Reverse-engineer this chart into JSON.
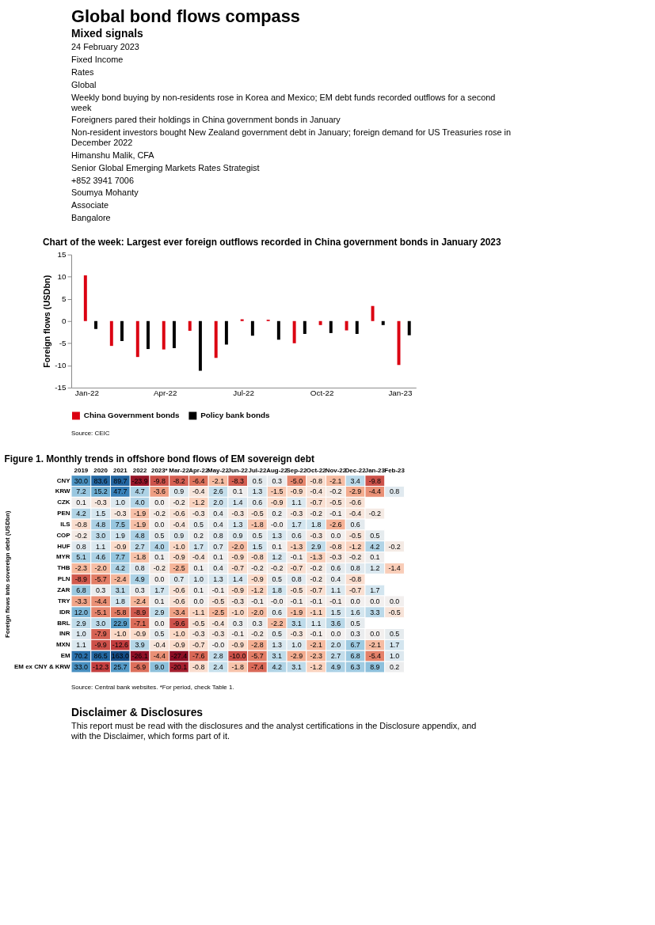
{
  "chart_data": [
    {
      "type": "other",
      "title": "Global bond flows compass",
      "subtitle": "Mixed signals",
      "annotations": [
        "24 February 2023",
        "Fixed Income",
        "Rates",
        "Global",
        "Weekly bond buying by non-residents rose in Korea and Mexico; EM debt funds recorded outflows for a second week",
        "Foreigners pared their holdings in China government bonds in January",
        "Non-resident investors bought New Zealand government debt in January; foreign demand for US Treasuries rose in December 2022",
        "Himanshu Malik, CFA",
        "Senior Global Emerging Markets Rates Strategist",
        "+852 3941 7006",
        "Soumya Mohanty",
        "Associate",
        "Bangalore"
      ]
    },
    {
      "type": "bar",
      "title": "Chart of the week: Largest ever foreign outflows recorded in China government bonds in January 2023",
      "ylabel": "Foreign flows (USDbn)",
      "categories": [
        "Jan-22",
        null,
        null,
        "Apr-22",
        null,
        null,
        "Jul-22",
        null,
        null,
        "Oct-22",
        null,
        null,
        "Jan-23"
      ],
      "series": [
        {
          "name": "China Government bonds",
          "color": "#db0011",
          "values": [
            10.3,
            -5.6,
            -8.1,
            -6.4,
            -2.2,
            -8.3,
            0.4,
            0.3,
            -5.0,
            -0.9,
            -2.1,
            3.4,
            -9.9
          ]
        },
        {
          "name": "Policy bank bonds",
          "color": "#000000",
          "values": [
            -1.8,
            -4.5,
            -6.3,
            -6.1,
            -11.2,
            -5.3,
            -3.3,
            -4.2,
            -2.9,
            -2.7,
            -2.9,
            -0.9,
            -3.2
          ]
        }
      ],
      "ylim": [
        -15,
        15
      ],
      "yticks": [
        -15,
        -10,
        -5,
        0,
        5,
        10,
        15
      ],
      "grid": false,
      "legend": "bottom",
      "annotations": [
        "Source: CEIC"
      ]
    },
    {
      "type": "heatmap",
      "title": "Figure 1. Monthly trends in offshore bond flows of EM sovereign debt",
      "ylabel": "Foreign flows into sovereign debt (USDbn)",
      "categories": [
        "2019",
        "2020",
        "2021",
        "2022",
        "2023*",
        "Mar-22",
        "Apr-22",
        "May-22",
        "Jun-22",
        "Jul-22",
        "Aug-22",
        "Sep-22",
        "Oct-22",
        "Nov-22",
        "Dec-22",
        "Jan-23",
        "Feb-23"
      ],
      "y_categories": [
        "CNY",
        "KRW",
        "CZK",
        "PEN",
        "ILS",
        "COP",
        "HUF",
        "MYR",
        "THB",
        "PLN",
        "ZAR",
        "TRY",
        "IDR",
        "BRL",
        "INR",
        "MXN",
        "EM",
        "EM ex CNY & KRW"
      ],
      "cells": [
        [
          30.0,
          83.6,
          89.7,
          -23.9,
          -9.8,
          -8.2,
          -6.4,
          -2.1,
          -8.3,
          0.5,
          0.3,
          -5.0,
          -0.8,
          -2.1,
          3.4,
          -9.8,
          null
        ],
        [
          7.2,
          15.2,
          47.7,
          4.7,
          -3.6,
          0.9,
          -0.4,
          2.6,
          0.1,
          1.3,
          -1.5,
          -0.9,
          -0.4,
          -0.2,
          -2.9,
          -4.4,
          0.8
        ],
        [
          0.1,
          -0.3,
          1.0,
          4.0,
          0.0,
          -0.2,
          -1.2,
          2.0,
          1.4,
          0.6,
          -0.9,
          1.1,
          -0.7,
          -0.5,
          -0.6,
          null,
          null
        ],
        [
          4.2,
          1.5,
          -0.3,
          -1.9,
          -0.2,
          -0.6,
          -0.3,
          0.4,
          -0.3,
          -0.5,
          0.2,
          -0.3,
          -0.2,
          -0.1,
          -0.4,
          -0.2,
          null
        ],
        [
          -0.8,
          4.8,
          7.5,
          -1.9,
          0.0,
          -0.4,
          0.5,
          0.4,
          1.3,
          -1.8,
          -0.0,
          1.7,
          1.8,
          -2.6,
          0.6,
          null,
          null
        ],
        [
          -0.2,
          3.0,
          1.9,
          4.8,
          0.5,
          0.9,
          0.2,
          0.8,
          0.9,
          0.5,
          1.3,
          0.6,
          -0.3,
          0.0,
          -0.5,
          0.5,
          null
        ],
        [
          0.8,
          1.1,
          -0.9,
          2.7,
          4.0,
          -1.0,
          1.7,
          0.7,
          -2.0,
          1.5,
          0.1,
          -1.3,
          2.9,
          -0.8,
          -1.2,
          4.2,
          -0.2
        ],
        [
          5.1,
          4.6,
          7.7,
          -1.8,
          0.1,
          -0.9,
          -0.4,
          0.1,
          -0.9,
          -0.8,
          1.2,
          -0.1,
          -1.3,
          -0.3,
          -0.2,
          0.1,
          null
        ],
        [
          -2.3,
          -2.0,
          4.2,
          0.8,
          -0.2,
          -2.5,
          0.1,
          0.4,
          -0.7,
          -0.2,
          -0.2,
          -0.7,
          -0.2,
          0.6,
          0.8,
          1.2,
          -1.4
        ],
        [
          -8.9,
          -5.7,
          -2.4,
          4.9,
          0.0,
          0.7,
          1.0,
          1.3,
          1.4,
          -0.9,
          0.5,
          0.8,
          -0.2,
          0.4,
          -0.8,
          null,
          null
        ],
        [
          6.8,
          0.3,
          3.1,
          0.3,
          1.7,
          -0.6,
          0.1,
          -0.1,
          -0.9,
          -1.2,
          1.8,
          -0.5,
          -0.7,
          1.1,
          -0.7,
          1.7,
          null
        ],
        [
          -3.3,
          -4.4,
          1.8,
          -2.4,
          0.1,
          -0.6,
          0.0,
          -0.5,
          -0.3,
          -0.1,
          -0.0,
          -0.1,
          -0.1,
          -0.1,
          0.0,
          0.0,
          0.0
        ],
        [
          12.0,
          -5.1,
          -5.8,
          -8.9,
          2.9,
          -3.4,
          -1.1,
          -2.5,
          -1.0,
          -2.0,
          0.6,
          -1.9,
          -1.1,
          1.5,
          1.6,
          3.3,
          -0.5
        ],
        [
          2.9,
          3.0,
          22.9,
          -7.1,
          0.0,
          -9.6,
          -0.5,
          -0.4,
          0.3,
          0.3,
          -2.2,
          3.1,
          1.1,
          3.6,
          0.5,
          null,
          null
        ],
        [
          1.0,
          -7.9,
          -1.0,
          -0.9,
          0.5,
          -1.0,
          -0.3,
          -0.3,
          -0.1,
          -0.2,
          0.5,
          -0.3,
          -0.1,
          0.0,
          0.3,
          0.0,
          0.5
        ],
        [
          1.1,
          -9.9,
          -12.6,
          3.9,
          -0.4,
          -0.9,
          -0.7,
          -0.0,
          -0.9,
          -2.8,
          1.3,
          1.0,
          -2.1,
          2.0,
          6.7,
          -2.1,
          1.7
        ],
        [
          70.2,
          86.5,
          163.0,
          -26.1,
          -4.4,
          -27.4,
          -7.6,
          2.8,
          -10.0,
          -5.7,
          3.1,
          -2.9,
          -2.3,
          2.7,
          6.8,
          -5.4,
          1.0
        ],
        [
          33.0,
          -12.3,
          25.7,
          -6.9,
          9.0,
          -20.1,
          -0.8,
          2.4,
          -1.8,
          -7.4,
          4.2,
          3.1,
          -1.2,
          4.9,
          6.3,
          8.9,
          0.2
        ]
      ],
      "cell_labels": [
        [
          "30.0",
          "83.6",
          "89.7",
          "-23.9",
          "-9.8",
          "-8.2",
          "-6.4",
          "-2.1",
          "-8.3",
          "0.5",
          "0.3",
          "-5.0",
          "-0.8",
          "-2.1",
          "3.4",
          "-9.8",
          null
        ],
        [
          "7.2",
          "15.2",
          "47.7",
          "4.7",
          "-3.6",
          "0.9",
          "-0.4",
          "2.6",
          "0.1",
          "1.3",
          "-1.5",
          "-0.9",
          "-0.4",
          "-0.2",
          "-2.9",
          "-4.4",
          "0.8"
        ],
        [
          "0.1",
          "-0.3",
          "1.0",
          "4.0",
          "0.0",
          "-0.2",
          "-1.2",
          "2.0",
          "1.4",
          "0.6",
          "-0.9",
          "1.1",
          "-0.7",
          "-0.5",
          "-0.6",
          null,
          null
        ],
        [
          "4.2",
          "1.5",
          "-0.3",
          "-1.9",
          "-0.2",
          "-0.6",
          "-0.3",
          "0.4",
          "-0.3",
          "-0.5",
          "0.2",
          "-0.3",
          "-0.2",
          "-0.1",
          "-0.4",
          "-0.2",
          null
        ],
        [
          "-0.8",
          "4.8",
          "7.5",
          "-1.9",
          "0.0",
          "-0.4",
          "0.5",
          "0.4",
          "1.3",
          "-1.8",
          "-0.0",
          "1.7",
          "1.8",
          "-2.6",
          "0.6",
          null,
          null
        ],
        [
          "-0.2",
          "3.0",
          "1.9",
          "4.8",
          "0.5",
          "0.9",
          "0.2",
          "0.8",
          "0.9",
          "0.5",
          "1.3",
          "0.6",
          "-0.3",
          "0.0",
          "-0.5",
          "0.5",
          null
        ],
        [
          "0.8",
          "1.1",
          "-0.9",
          "2.7",
          "4.0",
          "-1.0",
          "1.7",
          "0.7",
          "-2.0",
          "1.5",
          "0.1",
          "-1.3",
          "2.9",
          "-0.8",
          "-1.2",
          "4.2",
          "-0.2"
        ],
        [
          "5.1",
          "4.6",
          "7.7",
          "-1.8",
          "0.1",
          "-0.9",
          "-0.4",
          "0.1",
          "-0.9",
          "-0.8",
          "1.2",
          "-0.1",
          "-1.3",
          "-0.3",
          "-0.2",
          "0.1",
          null
        ],
        [
          "-2.3",
          "-2.0",
          "4.2",
          "0.8",
          "-0.2",
          "-2.5",
          "0.1",
          "0.4",
          "-0.7",
          "-0.2",
          "-0.2",
          "-0.7",
          "-0.2",
          "0.6",
          "0.8",
          "1.2",
          "-1.4"
        ],
        [
          "-8.9",
          "-5.7",
          "-2.4",
          "4.9",
          "0.0",
          "0.7",
          "1.0",
          "1.3",
          "1.4",
          "-0.9",
          "0.5",
          "0.8",
          "-0.2",
          "0.4",
          "-0.8",
          null,
          null
        ],
        [
          "6.8",
          "0.3",
          "3.1",
          "0.3",
          "1.7",
          "-0.6",
          "0.1",
          "-0.1",
          "-0.9",
          "-1.2",
          "1.8",
          "-0.5",
          "-0.7",
          "1.1",
          "-0.7",
          "1.7",
          null
        ],
        [
          "-3.3",
          "-4.4",
          "1.8",
          "-2.4",
          "0.1",
          "-0.6",
          "0.0",
          "-0.5",
          "-0.3",
          "-0.1",
          "-0.0",
          "-0.1",
          "-0.1",
          "-0.1",
          "0.0",
          "0.0",
          "0.0"
        ],
        [
          "12.0",
          "-5.1",
          "-5.8",
          "-8.9",
          "2.9",
          "-3.4",
          "-1.1",
          "-2.5",
          "-1.0",
          "-2.0",
          "0.6",
          "-1.9",
          "-1.1",
          "1.5",
          "1.6",
          "3.3",
          "-0.5"
        ],
        [
          "2.9",
          "3.0",
          "22.9",
          "-7.1",
          "0.0",
          "-9.6",
          "-0.5",
          "-0.4",
          "0.3",
          "0.3",
          "-2.2",
          "3.1",
          "1.1",
          "3.6",
          "0.5",
          null,
          null
        ],
        [
          "1.0",
          "-7.9",
          "-1.0",
          "-0.9",
          "0.5",
          "-1.0",
          "-0.3",
          "-0.3",
          "-0.1",
          "-0.2",
          "0.5",
          "-0.3",
          "-0.1",
          "0.0",
          "0.3",
          "0.0",
          "0.5"
        ],
        [
          "1.1",
          "-9.9",
          "-12.6",
          "3.9",
          "-0.4",
          "-0.9",
          "-0.7",
          "-0.0",
          "-0.9",
          "-2.8",
          "1.3",
          "1.0",
          "-2.1",
          "2.0",
          "6.7",
          "-2.1",
          "1.7"
        ],
        [
          "70.2",
          "86.5",
          "163.0",
          "-26.1",
          "-4.4",
          "-27.4",
          "-7.6",
          "2.8",
          "-10.0",
          "-5.7",
          "3.1",
          "-2.9",
          "-2.3",
          "2.7",
          "6.8",
          "-5.4",
          "1.0"
        ],
        [
          "33.0",
          "-12.3",
          "25.7",
          "-6.9",
          "9.0",
          "-20.1",
          "-0.8",
          "2.4",
          "-1.8",
          "-7.4",
          "4.2",
          "3.1",
          "-1.2",
          "4.9",
          "6.3",
          "8.9",
          "0.2"
        ]
      ],
      "annotations": [
        "Source: Central bank websites. *For period, check Table 1."
      ]
    },
    {
      "type": "other",
      "title": "Disclaimer & Disclosures",
      "annotations": [
        "This report must be read with the disclosures and the analyst certifications in the Disclosure appendix, and with the Disclaimer, which forms part of it."
      ]
    }
  ]
}
